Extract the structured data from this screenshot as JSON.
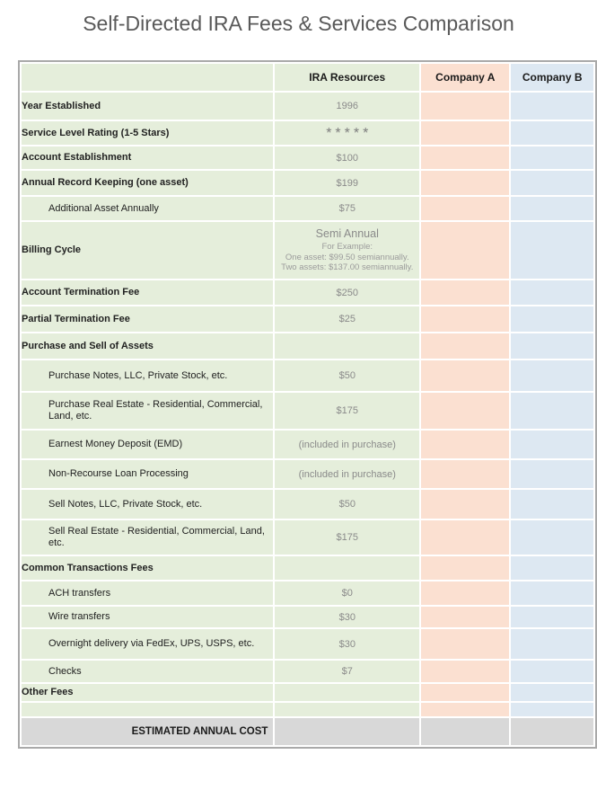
{
  "title": "Self-Directed IRA Fees & Services Comparison",
  "colors": {
    "ira_column_green": "#e5eedb",
    "company_a_peach": "#fbe0d1",
    "company_b_blue": "#dde8f2",
    "total_row_gray": "#d8d8d8",
    "frame_border_gray": "#a9a9a9",
    "title_text_gray": "#595959",
    "value_text_gray": "#8a8a8a"
  },
  "chart_data": {
    "type": "table",
    "title": "Self-Directed IRA Fees & Services Comparison",
    "columns": [
      "",
      "IRA Resources",
      "Company A",
      "Company B"
    ],
    "rows": [
      {
        "label": "Year Established",
        "value": "1996",
        "style": "bold"
      },
      {
        "label": "Service Level Rating (1-5 Stars)",
        "value": "*****",
        "style": "bold",
        "stars": true
      },
      {
        "label": "Account Establishment",
        "value": "$100",
        "style": "bold"
      },
      {
        "label": "Annual Record Keeping (one asset)",
        "value": "$199",
        "style": "bold"
      },
      {
        "label": "Additional Asset Annually",
        "value": "$75",
        "style": "indent"
      },
      {
        "label": "Billing Cycle",
        "value": "Semi Annual",
        "style": "bold",
        "note_heading": "For Example:",
        "note_lines": [
          "One asset: $99.50 semiannually.",
          "Two assets: $137.00 semiannually."
        ]
      },
      {
        "label": "Account Termination Fee",
        "value": "$250",
        "style": "bold"
      },
      {
        "label": "Partial Termination Fee",
        "value": "$25",
        "style": "bold"
      },
      {
        "label": "Purchase and Sell of Assets",
        "value": "",
        "style": "section"
      },
      {
        "label": "Purchase Notes, LLC, Private Stock, etc.",
        "value": "$50",
        "style": "indent"
      },
      {
        "label": "Purchase Real Estate - Residential, Commercial, Land, etc.",
        "value": "$175",
        "style": "indent"
      },
      {
        "label": "Earnest Money Deposit (EMD)",
        "value": "(included in purchase)",
        "style": "indent"
      },
      {
        "label": "Non-Recourse Loan Processing",
        "value": "(included in purchase)",
        "style": "indent"
      },
      {
        "label": "Sell Notes, LLC, Private Stock, etc.",
        "value": "$50",
        "style": "indent"
      },
      {
        "label": "Sell Real Estate - Residential, Commercial, Land, etc.",
        "value": "$175",
        "style": "indent"
      },
      {
        "label": "Common Transactions Fees",
        "value": "",
        "style": "section"
      },
      {
        "label": "ACH transfers",
        "value": "$0",
        "style": "indent"
      },
      {
        "label": "Wire transfers",
        "value": "$30",
        "style": "indent"
      },
      {
        "label": "Overnight delivery via FedEx, UPS, USPS, etc.",
        "value": "$30",
        "style": "indent"
      },
      {
        "label": "Checks",
        "value": "$7",
        "style": "indent"
      },
      {
        "label": "Other Fees",
        "value": "",
        "style": "section"
      },
      {
        "label": "",
        "value": "",
        "style": "spacer"
      },
      {
        "label": "ESTIMATED ANNUAL COST",
        "value": "",
        "style": "total"
      }
    ]
  }
}
